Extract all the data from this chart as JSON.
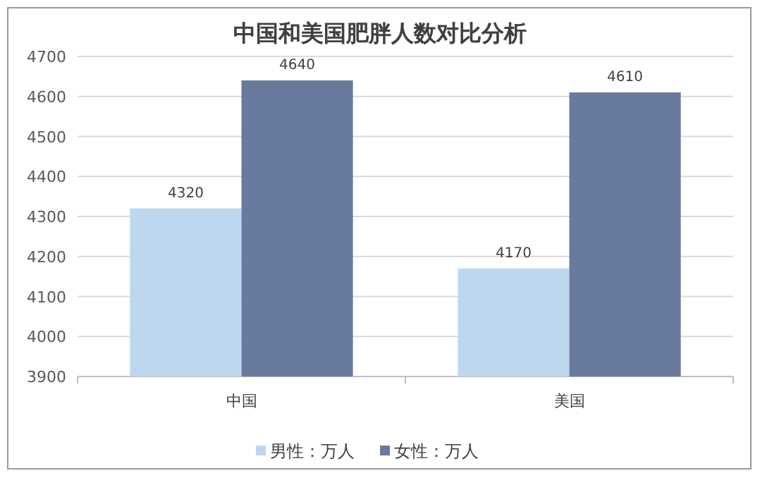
{
  "chart_data": {
    "type": "bar",
    "title": "中国和美国肥胖人数对比分析",
    "categories": [
      "中国",
      "美国"
    ],
    "series": [
      {
        "name": "男性：万人",
        "color": "#bdd7ee",
        "values": [
          4320,
          4170
        ]
      },
      {
        "name": "女性：万人",
        "color": "#687a9e",
        "values": [
          4640,
          4610
        ]
      }
    ],
    "ylim": [
      3900,
      4700
    ],
    "yticks": [
      3900,
      4000,
      4100,
      4200,
      4300,
      4400,
      4500,
      4600,
      4700
    ],
    "grid": "y",
    "legend": "bottom",
    "data_labels": true
  }
}
